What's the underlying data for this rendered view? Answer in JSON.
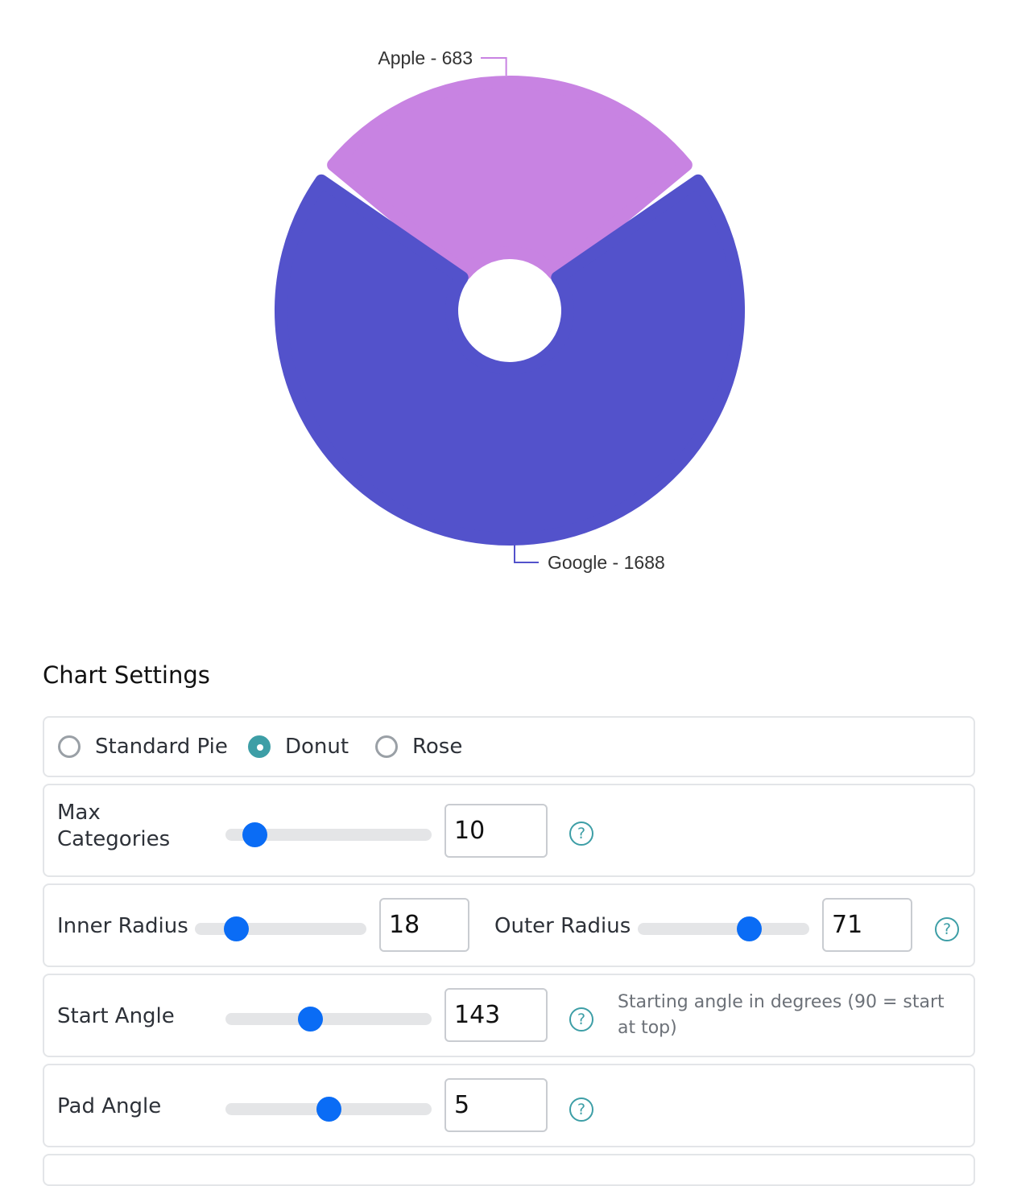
{
  "chart_data": {
    "type": "pie",
    "variant": "donut",
    "slices": [
      {
        "label": "Apple",
        "value": 683,
        "color": "#c883e2",
        "display": "Apple - 683"
      },
      {
        "label": "Google",
        "value": 1688,
        "color": "#5352cb",
        "display": "Google - 1688"
      }
    ],
    "inner_radius_percent": 18,
    "outer_radius_percent": 71,
    "start_angle_deg": 143,
    "pad_angle_deg": 5
  },
  "settings": {
    "title": "Chart Settings",
    "chart_types": [
      {
        "label": "Standard Pie",
        "checked": false
      },
      {
        "label": "Donut",
        "checked": true
      },
      {
        "label": "Rose",
        "checked": false
      }
    ],
    "max_categories": {
      "label": "Max\nCategories",
      "value": "10",
      "help_icon": "question-circle-icon"
    },
    "inner_radius": {
      "label": "Inner Radius",
      "value": "18"
    },
    "outer_radius": {
      "label": "Outer Radius",
      "value": "71",
      "help_icon": "question-circle-icon"
    },
    "start_angle": {
      "label": "Start Angle",
      "value": "143",
      "help_icon": "question-circle-icon",
      "help_text": "Starting angle in degrees (90 = start at top)"
    },
    "pad_angle": {
      "label": "Pad Angle",
      "value": "5",
      "help_icon": "question-circle-icon"
    }
  },
  "sliders": {
    "max_categories": 0.14,
    "inner_radius": 0.24,
    "outer_radius": 0.65,
    "start_angle": 0.41,
    "pad_angle": 0.5
  },
  "colors": {
    "accent": "#0a6cf5",
    "radio_accent": "#3d9ea6",
    "apple": "#c883e2",
    "google": "#5352cb"
  }
}
